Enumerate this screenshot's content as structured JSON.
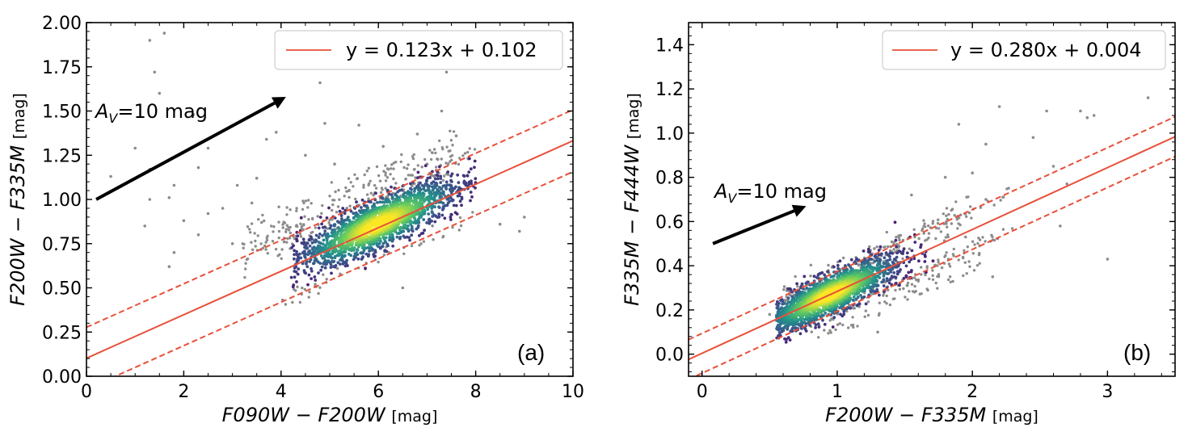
{
  "chart_data": [
    {
      "type": "scatter",
      "panel": "(a)",
      "xlabel_italic": "F090W − F200W",
      "xlabel_unit": "[mag]",
      "ylabel_italic": "F200W − F335M",
      "ylabel_unit": "[mag]",
      "xlim": [
        0,
        10
      ],
      "ylim": [
        0,
        2
      ],
      "x_ticks": [
        0,
        2,
        4,
        6,
        8,
        10
      ],
      "x_tick_labels": [
        "0",
        "2",
        "4",
        "6",
        "8",
        "10"
      ],
      "y_ticks": [
        0,
        0.25,
        0.5,
        0.75,
        1.0,
        1.25,
        1.5,
        1.75,
        2.0
      ],
      "y_tick_labels": [
        "0.00",
        "0.25",
        "0.50",
        "0.75",
        "1.00",
        "1.25",
        "1.50",
        "1.75",
        "2.00"
      ],
      "fit": {
        "slope": 0.123,
        "intercept": 0.102,
        "band_offset": 0.175,
        "color": "#e8503a"
      },
      "legend": {
        "label": "y = 0.123x + 0.102",
        "location": "upper right"
      },
      "extinction_vector": {
        "label": "A_V=10 mag",
        "start": [
          0.2,
          1.0
        ],
        "end": [
          4.1,
          1.58
        ]
      },
      "density_cloud": {
        "center": [
          6.0,
          0.86
        ],
        "x_sd": 0.8,
        "x_range": [
          4.2,
          8.0
        ],
        "scatter_sd": 0.065,
        "n_points": 2000,
        "colormap": [
          "#4a1d6f",
          "#3b528b",
          "#21918c",
          "#5ec962",
          "#fde725"
        ]
      },
      "outliers": {
        "color": "#8c8c8c",
        "points": [
          [
            1.3,
            1.9
          ],
          [
            1.6,
            1.94
          ],
          [
            1.4,
            1.72
          ],
          [
            1.5,
            1.6
          ],
          [
            2.2,
            1.48
          ],
          [
            4.8,
            1.66
          ],
          [
            7.4,
            1.72
          ],
          [
            7.3,
            1.5
          ],
          [
            2.5,
            1.29
          ],
          [
            2.3,
            1.18
          ],
          [
            1.0,
            1.29
          ],
          [
            0.5,
            1.13
          ],
          [
            1.3,
            1.17
          ],
          [
            1.3,
            1.0
          ],
          [
            1.7,
            1.01
          ],
          [
            1.8,
            1.08
          ],
          [
            1.2,
            0.85
          ],
          [
            2.0,
            0.88
          ],
          [
            2.5,
            0.92
          ],
          [
            1.7,
            0.62
          ],
          [
            1.8,
            0.7
          ],
          [
            2.3,
            0.8
          ],
          [
            3.1,
            1.08
          ],
          [
            3.5,
            1.12
          ],
          [
            3.4,
            0.98
          ],
          [
            3.9,
            1.38
          ],
          [
            3.7,
            1.34
          ],
          [
            4.9,
            1.43
          ],
          [
            5.6,
            1.42
          ],
          [
            6.8,
            1.37
          ],
          [
            7.6,
            1.36
          ],
          [
            8.5,
            0.86
          ],
          [
            8.9,
            0.82
          ],
          [
            9.0,
            0.9
          ],
          [
            6.5,
            0.5
          ],
          [
            3.0,
            0.75
          ],
          [
            2.8,
            0.95
          ],
          [
            4.5,
            1.25
          ],
          [
            5.1,
            1.2
          ],
          [
            6.1,
            1.3
          ],
          [
            7.0,
            1.2
          ],
          [
            3.6,
            0.87
          ]
        ],
        "envelope": {
          "x_range": [
            3.2,
            7.6
          ],
          "y_above": [
            0.1,
            0.35
          ],
          "n_points": 260
        },
        "near_band": {
          "x_range": [
            4.0,
            8.0
          ],
          "n_points": 90
        }
      }
    },
    {
      "type": "scatter",
      "panel": "(b)",
      "xlabel_italic": "F200W − F335M",
      "xlabel_unit": "[mag]",
      "ylabel_italic": "F335M − F444W",
      "ylabel_unit": "[mag]",
      "xlim": [
        -0.1,
        3.5
      ],
      "ylim": [
        -0.1,
        1.5
      ],
      "x_ticks": [
        0,
        1,
        2,
        3
      ],
      "x_tick_labels": [
        "0",
        "1",
        "2",
        "3"
      ],
      "y_ticks": [
        0.0,
        0.2,
        0.4,
        0.6,
        0.8,
        1.0,
        1.2,
        1.4
      ],
      "y_tick_labels": [
        "0.0",
        "0.2",
        "0.4",
        "0.6",
        "0.8",
        "1.0",
        "1.2",
        "1.4"
      ],
      "fit": {
        "slope": 0.28,
        "intercept": 0.004,
        "band_offset": 0.09,
        "color": "#e8503a"
      },
      "legend": {
        "label": "y = 0.280x + 0.004",
        "location": "upper right"
      },
      "extinction_vector": {
        "label": "A_V=10 mag",
        "start": [
          0.08,
          0.5
        ],
        "end": [
          0.77,
          0.67
        ]
      },
      "density_cloud": {
        "center": [
          0.95,
          0.27
        ],
        "x_sd": 0.25,
        "x_range": [
          0.55,
          2.2
        ],
        "scatter_sd": 0.045,
        "n_points": 1800,
        "colormap": [
          "#4a1d6f",
          "#3b528b",
          "#21918c",
          "#5ec962",
          "#fde725"
        ]
      },
      "outliers": {
        "color": "#8c8c8c",
        "points": [
          [
            2.2,
            1.12
          ],
          [
            2.55,
            1.1
          ],
          [
            2.8,
            1.1
          ],
          [
            2.85,
            1.07
          ],
          [
            2.9,
            1.08
          ],
          [
            3.3,
            1.16
          ],
          [
            1.9,
            1.04
          ],
          [
            2.45,
            0.98
          ],
          [
            3.0,
            0.43
          ],
          [
            2.1,
            0.95
          ],
          [
            2.0,
            0.82
          ],
          [
            2.6,
            0.85
          ],
          [
            2.7,
            0.77
          ],
          [
            1.8,
            0.8
          ],
          [
            1.55,
            0.72
          ],
          [
            2.1,
            0.7
          ],
          [
            2.65,
            0.58
          ],
          [
            2.15,
            0.35
          ],
          [
            2.05,
            0.45
          ],
          [
            1.95,
            0.53
          ],
          [
            0.5,
            0.18
          ],
          [
            1.3,
            0.1
          ]
        ],
        "envelope": {
          "x_range": [
            0.6,
            2.0
          ],
          "y_above": [
            0.05,
            0.12
          ],
          "n_points": 160
        },
        "below": {
          "x_range": [
            0.8,
            2.2
          ],
          "y_below": [
            0.05,
            0.2
          ],
          "n_points": 140
        },
        "near_band": {
          "x_range": [
            1.2,
            2.3
          ],
          "n_points": 60
        }
      }
    }
  ]
}
